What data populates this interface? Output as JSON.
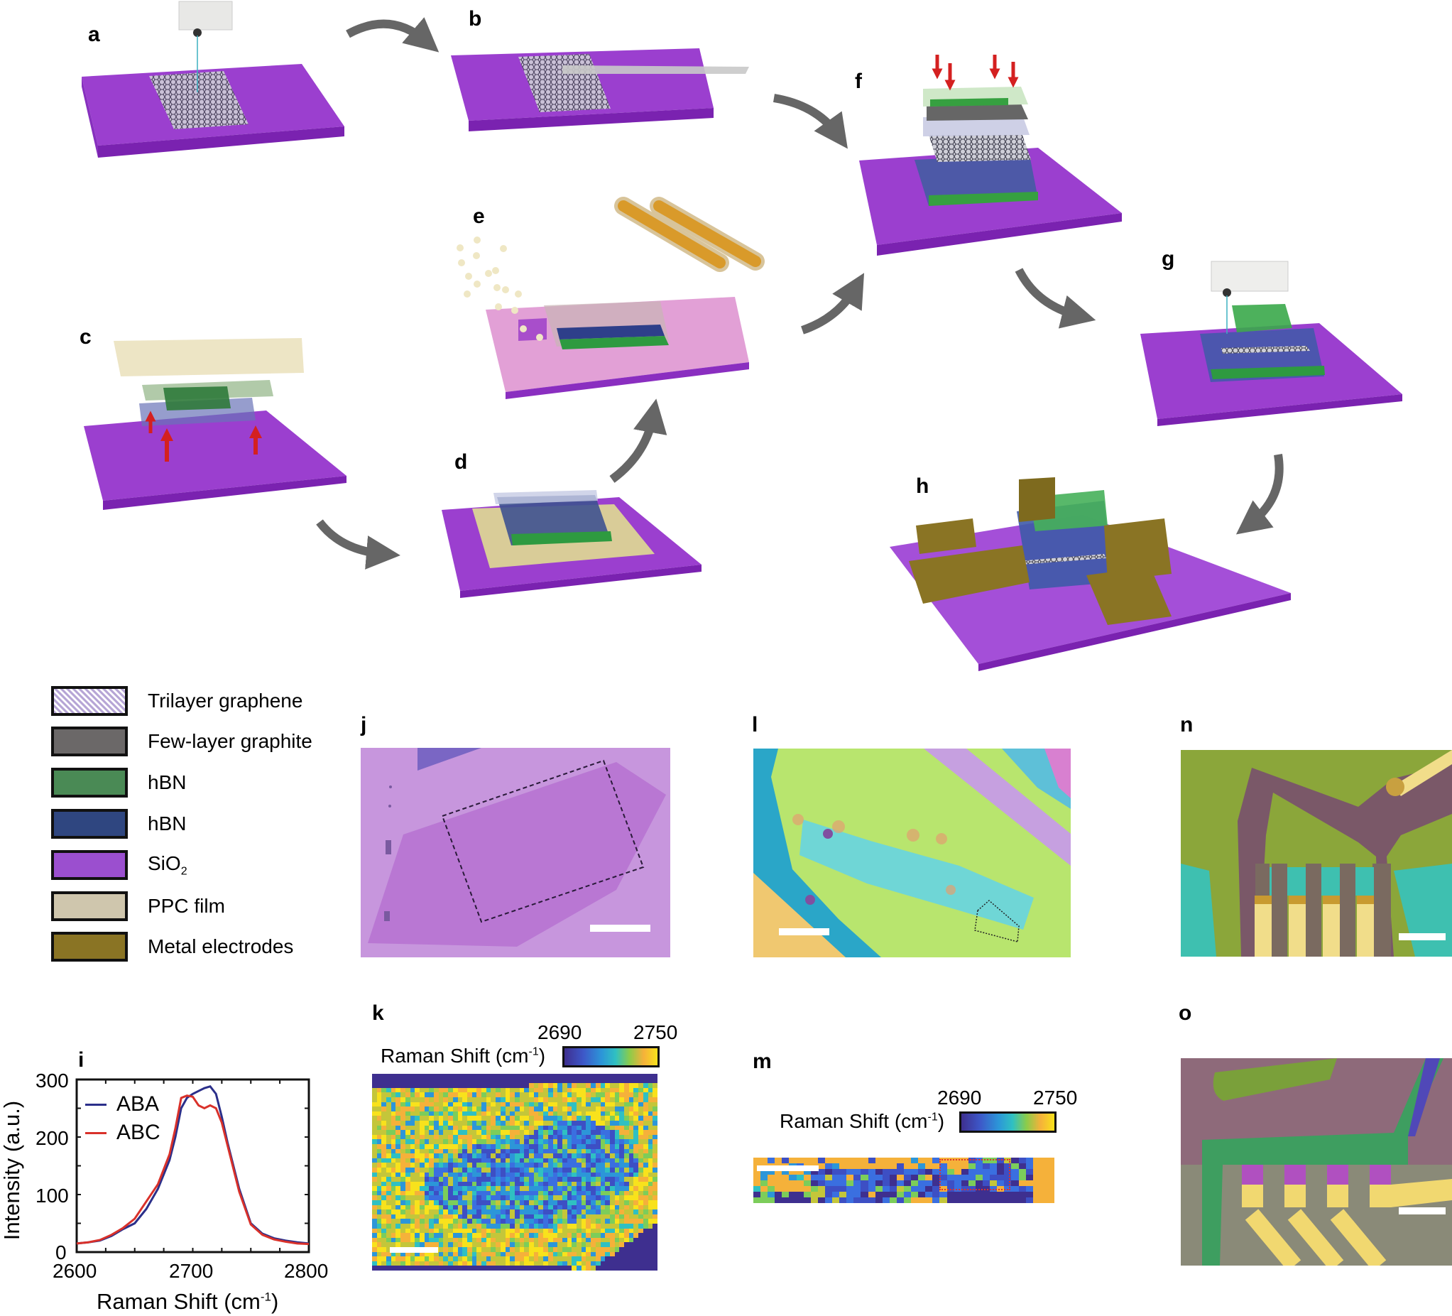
{
  "figure": {
    "panel_labels": {
      "a": "a",
      "b": "b",
      "c": "c",
      "d": "d",
      "e": "e",
      "f": "f",
      "g": "g",
      "h": "h",
      "i": "i",
      "j": "j",
      "k": "k",
      "l": "l",
      "m": "m",
      "n": "n",
      "o": "o"
    },
    "colors": {
      "sio2": "#9b3fcf",
      "sio2_dark": "#7a22b0",
      "hbn_green": "#3f8a4a",
      "hbn_blue": "#2e3f7a",
      "graphite": "#6e6e6e",
      "ppc": "#d8cfb5",
      "metal": "#8a7420",
      "arrow_gray": "#666666",
      "red_arrow": "#d42020"
    }
  },
  "legend": {
    "items": [
      {
        "label": "Trilayer graphene",
        "color": "#b7a6d6",
        "pattern": "hatch"
      },
      {
        "label": "Few-layer graphite",
        "color": "#6b6868"
      },
      {
        "label": "hBN",
        "color": "#4a8a55"
      },
      {
        "label": "hBN",
        "color": "#2f4680"
      },
      {
        "label": "SiO",
        "sub": "2",
        "color": "#9b4fcf"
      },
      {
        "label": "PPC film",
        "color": "#cfc6ad"
      },
      {
        "label": "Metal electrodes",
        "color": "#8a7424"
      }
    ]
  },
  "chart_data": [
    {
      "type": "line",
      "panel": "i",
      "title": "",
      "xlabel": "Raman Shift (cm-1)",
      "xlabel_main": "Raman Shift (cm",
      "xlabel_sup": "-1",
      "xlabel_end": ")",
      "ylabel": "Intensity (a.u.)",
      "xlim": [
        2600,
        2800
      ],
      "ylim": [
        0,
        300
      ],
      "xticks": [
        "2600",
        "2700",
        "2800"
      ],
      "yticks": [
        "0",
        "100",
        "200",
        "300"
      ],
      "legend_position": "upper left",
      "grid": false,
      "x": [
        2600,
        2610,
        2620,
        2630,
        2640,
        2650,
        2660,
        2670,
        2680,
        2685,
        2690,
        2695,
        2700,
        2705,
        2710,
        2715,
        2720,
        2725,
        2730,
        2740,
        2750,
        2760,
        2770,
        2780,
        2790,
        2800
      ],
      "series": [
        {
          "name": "ABA",
          "color": "#2b2f8a",
          "values": [
            15,
            17,
            20,
            28,
            40,
            50,
            75,
            110,
            160,
            200,
            250,
            268,
            275,
            280,
            285,
            288,
            275,
            235,
            190,
            110,
            50,
            32,
            24,
            20,
            17,
            15
          ]
        },
        {
          "name": "ABC",
          "color": "#d9312a",
          "values": [
            15,
            17,
            21,
            30,
            42,
            58,
            88,
            118,
            170,
            215,
            268,
            272,
            270,
            255,
            250,
            255,
            250,
            225,
            185,
            105,
            48,
            30,
            22,
            18,
            15,
            14
          ]
        }
      ]
    },
    {
      "type": "heatmap",
      "panel": "k",
      "colorbar_label": "Raman Shift (cm-1)",
      "colorbar_label_main": "Raman Shift (cm",
      "colorbar_label_sup": "-1",
      "colorbar_label_end": ")",
      "colorbar_min": "2690",
      "colorbar_max": "2750",
      "colormap": "parula",
      "description": "Low-shift (blue, ~2690-2700) elongated region in centre (ABC domain) surrounded by high-shift (yellow, ~2740-2750) region; out-of-flake pixels dark blue"
    },
    {
      "type": "heatmap",
      "panel": "m",
      "colorbar_label": "Raman Shift (cm-1)",
      "colorbar_label_main": "Raman Shift (cm",
      "colorbar_label_sup": "-1",
      "colorbar_label_end": ")",
      "colorbar_min": "2690",
      "colorbar_max": "2750",
      "colormap": "parula",
      "annotation": "red dotted rectangle marking device region"
    }
  ]
}
